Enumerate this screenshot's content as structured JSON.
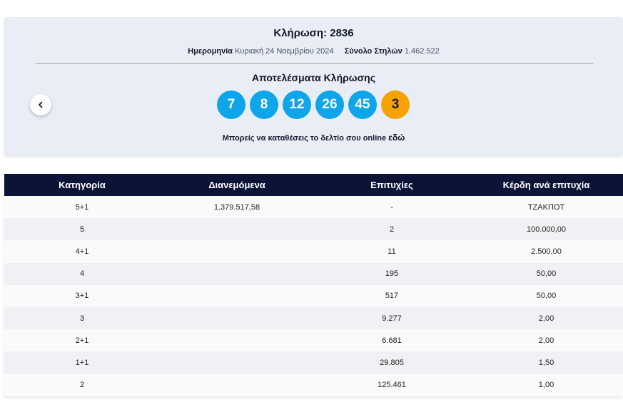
{
  "draw": {
    "title": "Κλήρωση: 2836",
    "date_label": "Ημερομηνία",
    "date_value": "Κυριακή 24 Νοεμβρίου 2024",
    "columns_label": "Σύνολο Στηλών",
    "columns_value": "1.462.522",
    "results_title": "Αποτελέσματα Κλήρωσης",
    "numbers": [
      "7",
      "8",
      "12",
      "26",
      "45"
    ],
    "bonus": "3",
    "online_text": "Μπορείς να καταθέσεις το δελτίο σου online",
    "online_link": "εδώ",
    "prev_icon": "chevron-left-icon"
  },
  "table": {
    "headers": [
      "Κατηγορία",
      "Διανεμόμενα",
      "Επιτυχίες",
      "Κέρδη ανά επιτυχία"
    ],
    "rows": [
      [
        "5+1",
        "1.379.517,58",
        "-",
        "ΤΖΑΚΠΟΤ"
      ],
      [
        "5",
        "",
        "2",
        "100.000,00"
      ],
      [
        "4+1",
        "",
        "11",
        "2.500,00"
      ],
      [
        "4",
        "",
        "195",
        "50,00"
      ],
      [
        "3+1",
        "",
        "517",
        "50,00"
      ],
      [
        "3",
        "",
        "9.277",
        "2,00"
      ],
      [
        "2+1",
        "",
        "6.681",
        "2,00"
      ],
      [
        "1+1",
        "",
        "29.805",
        "1,50"
      ],
      [
        "2",
        "",
        "125.461",
        "1,00"
      ]
    ]
  },
  "colors": {
    "ball": "#0ea5e9",
    "bonus_ball": "#f5a300",
    "header_bg": "#0b1437",
    "card_bg": "#e9edf6"
  }
}
